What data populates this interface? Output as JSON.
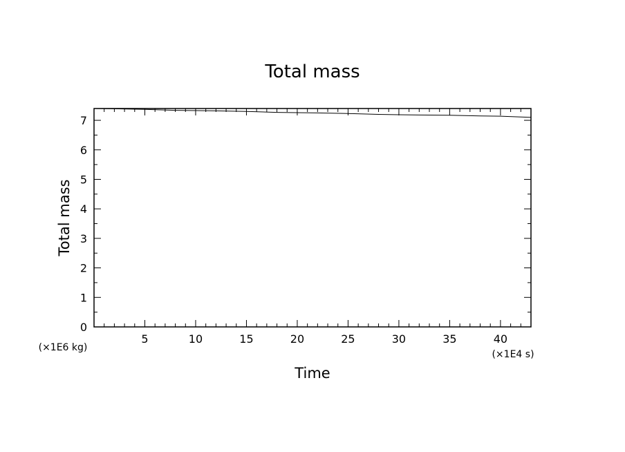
{
  "chart_data": {
    "type": "line",
    "title": "Total mass",
    "xlabel": "Time",
    "ylabel": "Total mass",
    "x_scale_label": "(×1E4 s)",
    "y_scale_label": "(×1E6 kg)",
    "xlim": [
      0,
      43
    ],
    "ylim": [
      0,
      7.4
    ],
    "x_major_ticks": [
      5,
      10,
      15,
      20,
      25,
      30,
      35,
      40
    ],
    "y_major_ticks": [
      0,
      1,
      2,
      3,
      4,
      5,
      6,
      7
    ],
    "grid": false,
    "series": [
      {
        "x": [
          0,
          2,
          5,
          8,
          10,
          12,
          15,
          18,
          20,
          22,
          25,
          28,
          30,
          32,
          35,
          38,
          40,
          43
        ],
        "y": [
          7.4,
          7.39,
          7.37,
          7.34,
          7.33,
          7.32,
          7.3,
          7.27,
          7.26,
          7.25,
          7.23,
          7.2,
          7.19,
          7.18,
          7.17,
          7.15,
          7.14,
          7.1
        ]
      }
    ]
  }
}
